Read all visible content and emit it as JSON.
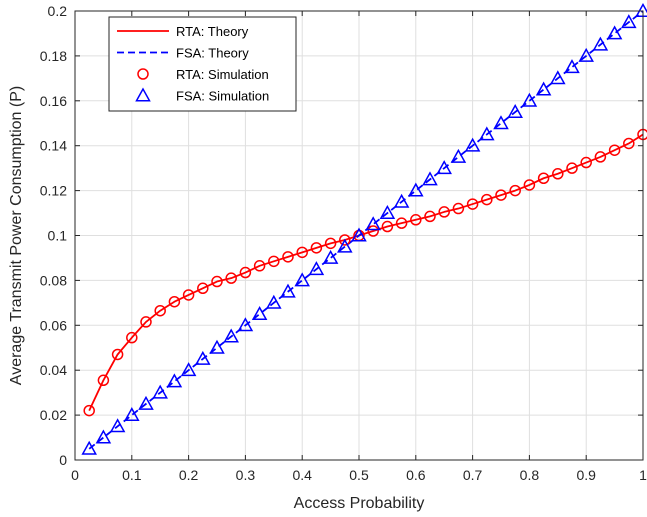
{
  "chart_data": {
    "type": "line",
    "xlabel": "Access Probability",
    "ylabel": "Average Transmit Power Consumption (P)",
    "xlim": [
      0,
      1
    ],
    "ylim": [
      0,
      0.2
    ],
    "xticks": [
      "0",
      "0.1",
      "0.2",
      "0.3",
      "0.4",
      "0.5",
      "0.6",
      "0.7",
      "0.8",
      "0.9",
      "1"
    ],
    "yticks": [
      "0",
      "0.02",
      "0.04",
      "0.06",
      "0.08",
      "0.1",
      "0.12",
      "0.14",
      "0.16",
      "0.18",
      "0.2"
    ],
    "grid": true,
    "legend_position": "top-left",
    "x": [
      0.025,
      0.05,
      0.075,
      0.1,
      0.125,
      0.15,
      0.175,
      0.2,
      0.225,
      0.25,
      0.275,
      0.3,
      0.325,
      0.35,
      0.375,
      0.4,
      0.425,
      0.45,
      0.475,
      0.5,
      0.525,
      0.55,
      0.575,
      0.6,
      0.625,
      0.65,
      0.675,
      0.7,
      0.725,
      0.75,
      0.775,
      0.8,
      0.825,
      0.85,
      0.875,
      0.9,
      0.925,
      0.95,
      0.975,
      1.0
    ],
    "series": [
      {
        "name": "RTA: Theory",
        "style": "solid",
        "color": "#ff0000",
        "values": [
          0.022,
          0.0355,
          0.047,
          0.0545,
          0.0615,
          0.0665,
          0.0705,
          0.0735,
          0.0765,
          0.0795,
          0.081,
          0.0835,
          0.0865,
          0.0885,
          0.0905,
          0.0925,
          0.0945,
          0.0965,
          0.098,
          0.1,
          0.102,
          0.104,
          0.1055,
          0.107,
          0.1085,
          0.1105,
          0.112,
          0.114,
          0.116,
          0.118,
          0.12,
          0.1225,
          0.1255,
          0.1275,
          0.13,
          0.1325,
          0.135,
          0.138,
          0.141,
          0.145
        ]
      },
      {
        "name": "FSA: Theory",
        "style": "dashed",
        "color": "#0000ff",
        "values": [
          0.005,
          0.01,
          0.015,
          0.02,
          0.025,
          0.03,
          0.035,
          0.04,
          0.045,
          0.05,
          0.055,
          0.06,
          0.065,
          0.07,
          0.075,
          0.08,
          0.085,
          0.09,
          0.095,
          0.1,
          0.105,
          0.11,
          0.115,
          0.12,
          0.125,
          0.13,
          0.135,
          0.14,
          0.145,
          0.15,
          0.155,
          0.16,
          0.165,
          0.17,
          0.175,
          0.18,
          0.185,
          0.19,
          0.195,
          0.2
        ]
      },
      {
        "name": "RTA: Simulation",
        "marker": "circle",
        "color": "#ff0000",
        "values": [
          0.022,
          0.0355,
          0.047,
          0.0545,
          0.0615,
          0.0665,
          0.0705,
          0.0735,
          0.0765,
          0.0795,
          0.081,
          0.0835,
          0.0865,
          0.0885,
          0.0905,
          0.0925,
          0.0945,
          0.0965,
          0.098,
          0.1,
          0.102,
          0.104,
          0.1055,
          0.107,
          0.1085,
          0.1105,
          0.112,
          0.114,
          0.116,
          0.118,
          0.12,
          0.1225,
          0.1255,
          0.1275,
          0.13,
          0.1325,
          0.135,
          0.138,
          0.141,
          0.145
        ]
      },
      {
        "name": "FSA: Simulation",
        "marker": "triangle",
        "color": "#0000ff",
        "values": [
          0.005,
          0.01,
          0.015,
          0.02,
          0.025,
          0.03,
          0.035,
          0.04,
          0.045,
          0.05,
          0.055,
          0.06,
          0.065,
          0.07,
          0.075,
          0.08,
          0.085,
          0.09,
          0.095,
          0.1,
          0.105,
          0.11,
          0.115,
          0.12,
          0.125,
          0.13,
          0.135,
          0.14,
          0.145,
          0.15,
          0.155,
          0.16,
          0.165,
          0.17,
          0.175,
          0.18,
          0.185,
          0.19,
          0.195,
          0.2
        ]
      }
    ]
  }
}
